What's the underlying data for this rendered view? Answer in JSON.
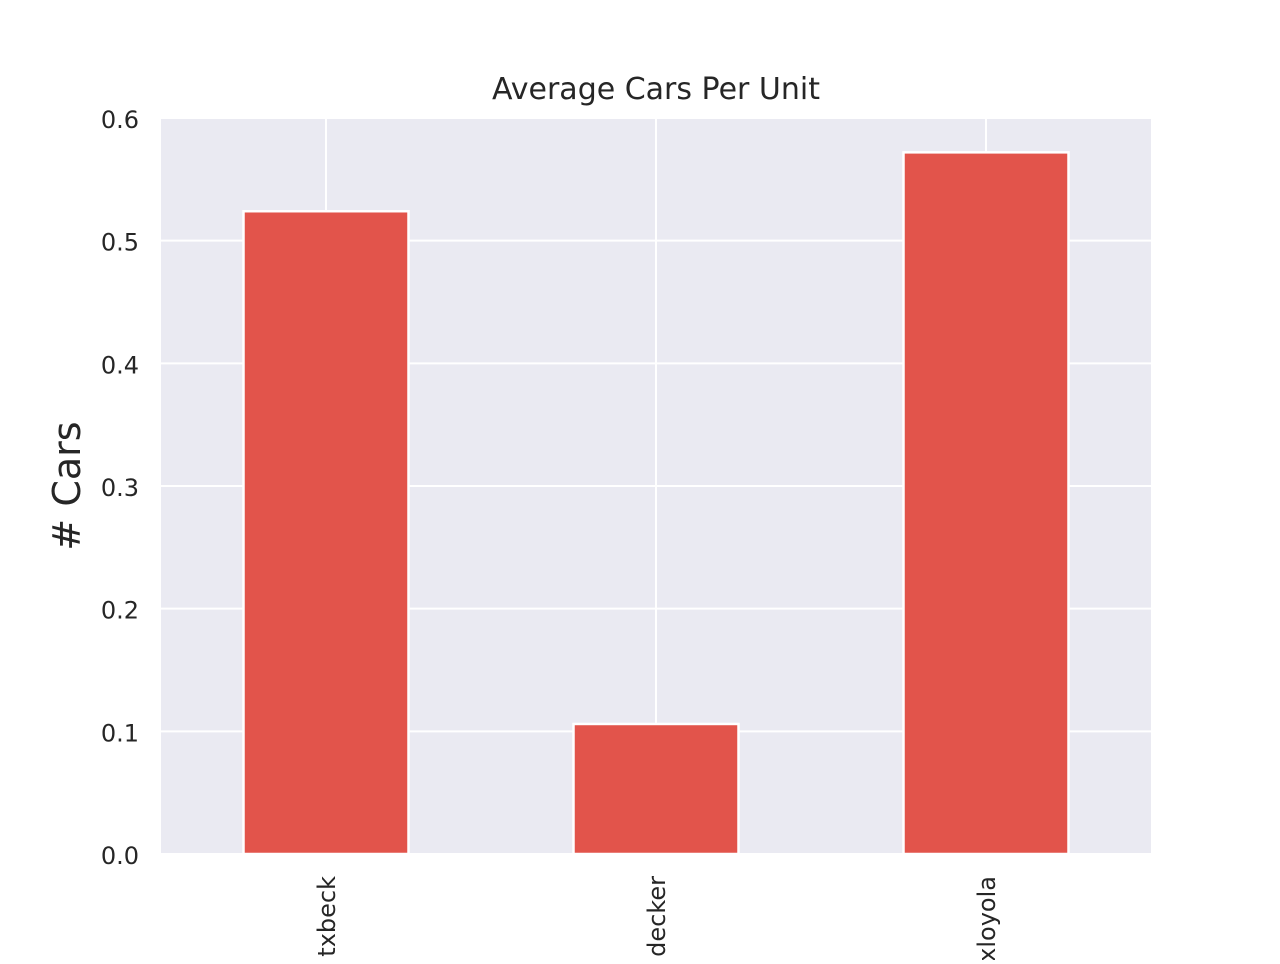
{
  "chart_data": {
    "type": "bar",
    "title": "Average Cars Per Unit",
    "xlabel": "",
    "ylabel": "# Cars",
    "categories": [
      "txbeck",
      "decker",
      "xloyola"
    ],
    "values": [
      0.524,
      0.106,
      0.572
    ],
    "ylim": [
      0,
      0.6
    ],
    "yticks": [
      "0.0",
      "0.1",
      "0.2",
      "0.3",
      "0.4",
      "0.5",
      "0.6"
    ],
    "grid": true,
    "legend": "none",
    "colors": {
      "bar": "#e2544b",
      "bar_edge": "#ffffff",
      "plot_background": "#eaeaf2",
      "grid": "#ffffff",
      "text": "#262626"
    }
  }
}
